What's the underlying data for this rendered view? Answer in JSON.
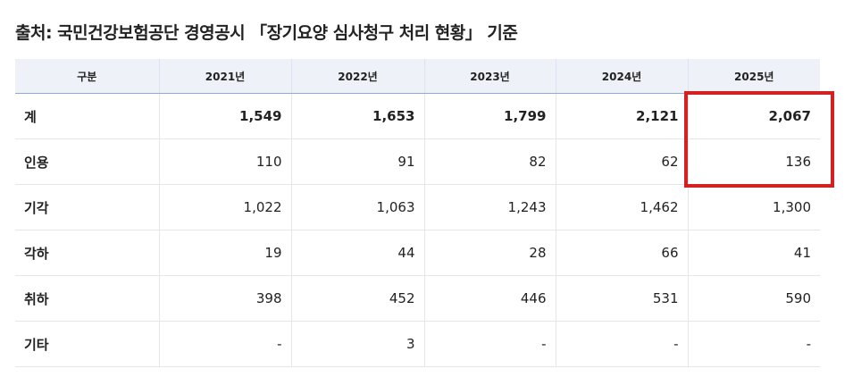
{
  "header": {
    "title": "출처: 국민건강보험공단 경영공시 「장기요양 심사청구 처리 현황」 기준"
  },
  "table": {
    "columns": [
      "구분",
      "2021년",
      "2022년",
      "2023년",
      "2024년",
      "2025년"
    ],
    "rows": [
      [
        "계",
        "1,549",
        "1,653",
        "1,799",
        "2,121",
        "2,067"
      ],
      [
        "인용",
        "110",
        "91",
        "82",
        "62",
        "136"
      ],
      [
        "기각",
        "1,022",
        "1,063",
        "1,243",
        "1,462",
        "1,300"
      ],
      [
        "각하",
        "19",
        "44",
        "28",
        "66",
        "41"
      ],
      [
        "취하",
        "398",
        "452",
        "446",
        "531",
        "590"
      ],
      [
        "기타",
        "-",
        "3",
        "-",
        "-",
        "-"
      ]
    ]
  }
}
